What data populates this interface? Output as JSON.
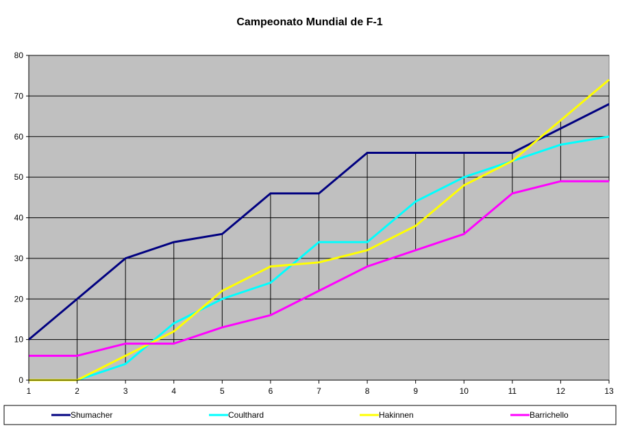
{
  "chart_data": {
    "type": "line",
    "title": "Campeonato Mundial de F-1",
    "xlabel": "",
    "ylabel": "",
    "x": [
      1,
      2,
      3,
      4,
      5,
      6,
      7,
      8,
      9,
      10,
      11,
      12,
      13
    ],
    "ylim": [
      0,
      80
    ],
    "yticks": [
      0,
      10,
      20,
      30,
      40,
      50,
      60,
      70,
      80
    ],
    "grid": true,
    "drop_lines": true,
    "legend_position": "bottom",
    "plot_background": "#c0c0c0",
    "series": [
      {
        "name": "Shumacher",
        "color": "#000080",
        "values": [
          10,
          20,
          30,
          34,
          36,
          46,
          46,
          56,
          56,
          56,
          56,
          62,
          68
        ]
      },
      {
        "name": "Coulthard",
        "color": "#00ffff",
        "values": [
          0,
          0,
          4,
          14,
          20,
          24,
          34,
          34,
          44,
          50,
          54,
          58,
          60
        ]
      },
      {
        "name": "Hakinnen",
        "color": "#ffff00",
        "values": [
          0,
          0,
          6,
          12,
          22,
          28,
          29,
          32,
          38,
          48,
          54,
          64,
          74
        ]
      },
      {
        "name": "Barrichello",
        "color": "#ff00ff",
        "values": [
          6,
          6,
          9,
          9,
          13,
          16,
          22,
          28,
          32,
          36,
          46,
          49,
          49
        ]
      }
    ]
  }
}
